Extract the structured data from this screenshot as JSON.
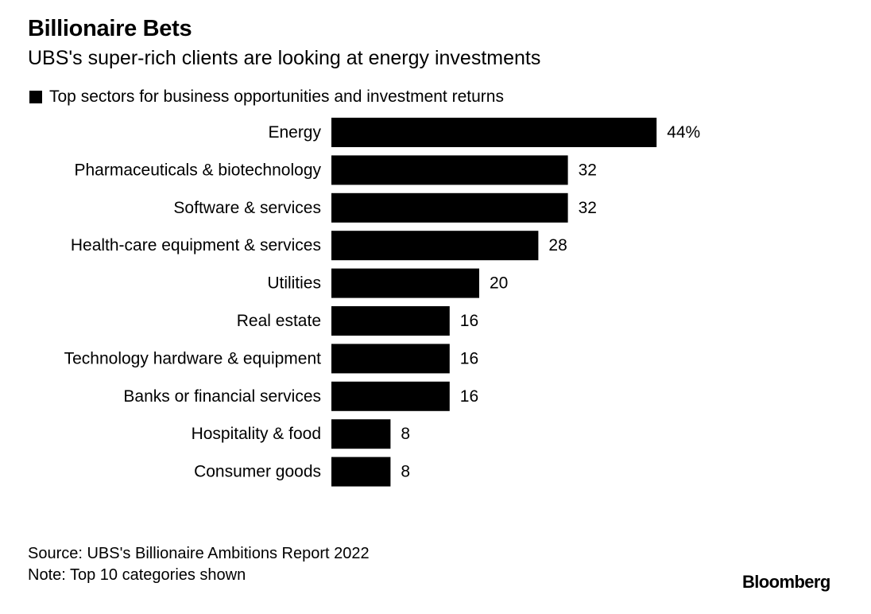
{
  "header": {
    "title": "Billionaire Bets",
    "subtitle": "UBS's super-rich clients are looking at energy investments"
  },
  "legend": {
    "label": "Top sectors for business opportunities and investment returns"
  },
  "chart_data": {
    "type": "bar",
    "orientation": "horizontal",
    "categories": [
      "Energy",
      "Pharmaceuticals & biotechnology",
      "Software & services",
      "Health-care equipment & services",
      "Utilities",
      "Real estate",
      "Technology hardware & equipment",
      "Banks or financial services",
      "Hospitality & food",
      "Consumer goods"
    ],
    "values": [
      44,
      32,
      32,
      28,
      20,
      16,
      16,
      16,
      8,
      8
    ],
    "data_labels": [
      "44%",
      "32",
      "32",
      "28",
      "20",
      "16",
      "16",
      "16",
      "8",
      "8"
    ],
    "series": [
      {
        "name": "Top sectors for business opportunities and investment returns",
        "color": "#000000"
      }
    ],
    "legend_position": "top-left",
    "grid": false
  },
  "footer": {
    "source": "Source: UBS's Billionaire Ambitions Report 2022",
    "note": "Note: Top 10 categories shown",
    "brand": "Bloomberg"
  }
}
